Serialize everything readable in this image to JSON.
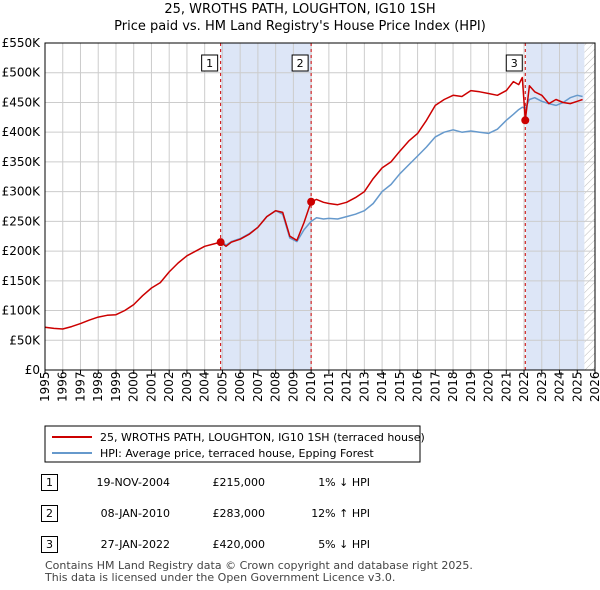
{
  "title": {
    "line1": "25, WROTHS PATH, LOUGHTON, IG10 1SH",
    "line2": "Price paid vs. HM Land Registry's House Price Index (HPI)"
  },
  "colors": {
    "price_line": "#cc0000",
    "hpi_line": "#6699cc",
    "shade": "#dde6f7",
    "marker": "#cc0000",
    "vline": "#cc0000",
    "grid": "#cccccc"
  },
  "chart_data": {
    "type": "line",
    "xlim": [
      1995,
      2026
    ],
    "ylim": [
      0,
      550000
    ],
    "x_ticks": [
      1995,
      1996,
      1997,
      1998,
      1999,
      2000,
      2001,
      2002,
      2003,
      2004,
      2005,
      2006,
      2007,
      2008,
      2009,
      2010,
      2011,
      2012,
      2013,
      2014,
      2015,
      2016,
      2017,
      2018,
      2019,
      2020,
      2021,
      2022,
      2023,
      2024,
      2025,
      2026
    ],
    "x_tick_labels": [
      "1995",
      "1996",
      "1997",
      "1998",
      "1999",
      "2000",
      "2001",
      "2002",
      "2003",
      "2004",
      "2005",
      "2006",
      "2007",
      "2008",
      "2009",
      "2010",
      "2011",
      "2012",
      "2013",
      "2014",
      "2015",
      "2016",
      "2017",
      "2018",
      "2019",
      "2020",
      "2021",
      "2022",
      "2023",
      "2024",
      "2025",
      "2026"
    ],
    "y_ticks": [
      0,
      50000,
      100000,
      150000,
      200000,
      250000,
      300000,
      350000,
      400000,
      450000,
      500000,
      550000
    ],
    "y_tick_labels": [
      "£0",
      "£50K",
      "£100K",
      "£150K",
      "£200K",
      "£250K",
      "£300K",
      "£350K",
      "£400K",
      "£450K",
      "£500K",
      "£550K"
    ],
    "shaded_ranges": [
      [
        2004.9,
        2010.0
      ],
      [
        2022.1,
        2025.4
      ]
    ],
    "hatch_from": 2025.4,
    "series": [
      {
        "name": "25, WROTHS PATH, LOUGHTON, IG10 1SH (terraced house)",
        "color": "#cc0000",
        "x": [
          1995.0,
          1995.5,
          1996.0,
          1996.5,
          1997.0,
          1997.5,
          1998.0,
          1998.5,
          1999.0,
          1999.5,
          2000.0,
          2000.5,
          2001.0,
          2001.5,
          2002.0,
          2002.5,
          2003.0,
          2003.5,
          2004.0,
          2004.5,
          2004.9,
          2005.2,
          2005.5,
          2006.0,
          2006.5,
          2007.0,
          2007.5,
          2008.0,
          2008.4,
          2008.8,
          2009.2,
          2009.6,
          2010.0,
          2010.3,
          2010.7,
          2011.0,
          2011.5,
          2012.0,
          2012.5,
          2013.0,
          2013.5,
          2014.0,
          2014.5,
          2015.0,
          2015.5,
          2016.0,
          2016.5,
          2017.0,
          2017.5,
          2018.0,
          2018.5,
          2019.0,
          2019.5,
          2020.0,
          2020.5,
          2021.0,
          2021.4,
          2021.7,
          2021.9,
          2022.07,
          2022.3,
          2022.6,
          2023.0,
          2023.4,
          2023.8,
          2024.2,
          2024.6,
          2025.0,
          2025.3
        ],
        "y": [
          72000,
          70000,
          69000,
          73000,
          78000,
          84000,
          89000,
          92000,
          93000,
          100000,
          110000,
          125000,
          138000,
          147000,
          165000,
          180000,
          192000,
          200000,
          208000,
          212000,
          215000,
          208000,
          215000,
          220000,
          228000,
          240000,
          258000,
          268000,
          265000,
          225000,
          218000,
          248000,
          283000,
          287000,
          282000,
          280000,
          278000,
          282000,
          290000,
          300000,
          322000,
          340000,
          350000,
          368000,
          385000,
          398000,
          420000,
          445000,
          455000,
          462000,
          460000,
          470000,
          468000,
          465000,
          462000,
          470000,
          485000,
          480000,
          492000,
          420000,
          478000,
          468000,
          462000,
          448000,
          455000,
          450000,
          448000,
          452000,
          455000
        ]
      },
      {
        "name": "HPI: Average price, terraced house, Epping Forest",
        "color": "#6699cc",
        "x": [
          2004.9,
          2005.2,
          2005.5,
          2006.0,
          2006.5,
          2007.0,
          2007.5,
          2008.0,
          2008.4,
          2008.8,
          2009.2,
          2009.6,
          2010.0,
          2010.3,
          2010.7,
          2011.0,
          2011.5,
          2012.0,
          2012.5,
          2013.0,
          2013.5,
          2014.0,
          2014.5,
          2015.0,
          2015.5,
          2016.0,
          2016.5,
          2017.0,
          2017.5,
          2018.0,
          2018.5,
          2019.0,
          2019.5,
          2020.0,
          2020.5,
          2021.0,
          2021.4,
          2021.7,
          2021.9,
          2022.07,
          2022.3,
          2022.6,
          2023.0,
          2023.4,
          2023.8,
          2024.2,
          2024.6,
          2025.0,
          2025.3
        ],
        "y": [
          218000,
          210000,
          216000,
          221000,
          229000,
          240000,
          258000,
          268000,
          262000,
          222000,
          216000,
          236000,
          250000,
          256000,
          254000,
          255000,
          254000,
          258000,
          262000,
          268000,
          280000,
          300000,
          312000,
          330000,
          345000,
          360000,
          375000,
          392000,
          400000,
          404000,
          400000,
          402000,
          400000,
          398000,
          405000,
          420000,
          430000,
          438000,
          442000,
          440000,
          455000,
          458000,
          452000,
          448000,
          445000,
          450000,
          458000,
          462000,
          460000
        ]
      }
    ],
    "sale_points": [
      {
        "label": "1",
        "x": 2004.9,
        "y": 215000
      },
      {
        "label": "2",
        "x": 2010.0,
        "y": 283000
      },
      {
        "label": "3",
        "x": 2022.07,
        "y": 420000
      }
    ],
    "legend": [
      {
        "label": "25, WROTHS PATH, LOUGHTON, IG10 1SH (terraced house)",
        "color": "#cc0000"
      },
      {
        "label": "HPI: Average price, terraced house, Epping Forest",
        "color": "#6699cc"
      }
    ]
  },
  "sales": [
    {
      "num": "1",
      "date": "19-NOV-2004",
      "price": "£215,000",
      "hpi": "1% ↓ HPI"
    },
    {
      "num": "2",
      "date": "08-JAN-2010",
      "price": "£283,000",
      "hpi": "12% ↑ HPI"
    },
    {
      "num": "3",
      "date": "27-JAN-2022",
      "price": "£420,000",
      "hpi": "5% ↓ HPI"
    }
  ],
  "footer": {
    "line1": "Contains HM Land Registry data © Crown copyright and database right 2025.",
    "line2": "This data is licensed under the Open Government Licence v3.0."
  }
}
